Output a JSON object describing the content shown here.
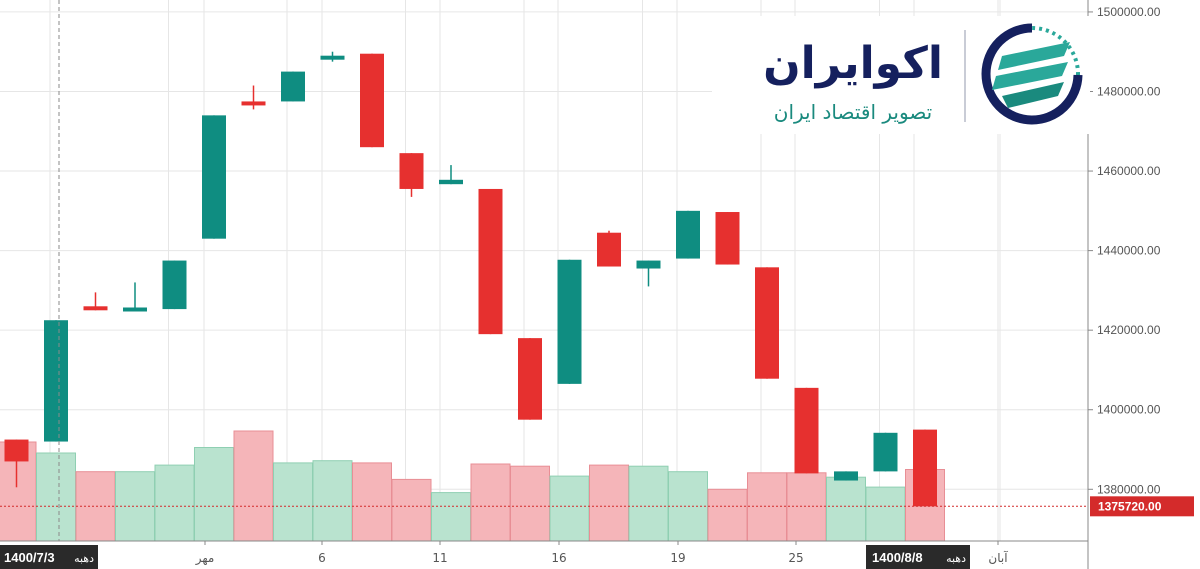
{
  "logo": {
    "title": "اکوایران",
    "subtitle": "تصویر اقتصاد ایران",
    "colors": {
      "navy": "#15205e",
      "teal": "#1a8a7e",
      "green": "#2aa89a"
    }
  },
  "colors": {
    "up": "#0f8d81",
    "down": "#e6302f",
    "volume_up": "#b9e3cf",
    "volume_down": "#f5b5b9",
    "grid": "#e6e6e6",
    "price_line": "#d42b2b",
    "label_bg": "#2a2a2a"
  },
  "chart_data": {
    "type": "candlestick",
    "title": "",
    "xlabel": "",
    "ylabel": "",
    "ylim": [
      1367000,
      1503000
    ],
    "yticks": [
      "1500000.00",
      "1480000.00",
      "1460000.00",
      "1440000.00",
      "1420000.00",
      "1400000.00",
      "1380000.00"
    ],
    "last_price": 1375720,
    "last_price_label": "1375720.00",
    "crosshair_date": "1400/7/3",
    "crosshair_day_label": "دهبه",
    "end_date": "1400/8/8",
    "end_day_label": "دهبه",
    "xticks": [
      {
        "index": 5,
        "label": "مهر"
      },
      {
        "index": 8,
        "label": "6"
      },
      {
        "index": 11,
        "label": "11"
      },
      {
        "index": 14,
        "label": "16"
      },
      {
        "index": 17,
        "label": "19"
      },
      {
        "index": 20,
        "label": "25"
      },
      {
        "index": 25,
        "label": "آبان"
      }
    ],
    "candles": [
      {
        "open": 1392500,
        "high": 1392500,
        "close": 1387000,
        "low": 1380500
      },
      {
        "open": 1392000,
        "high": 1422500,
        "close": 1422500,
        "low": 1392000
      },
      {
        "open": 1426000,
        "high": 1429500,
        "close": 1425000,
        "low": 1425000
      },
      {
        "open": 1425000,
        "high": 1432000,
        "close": 1425700,
        "low": 1425000
      },
      {
        "open": 1425300,
        "high": 1437500,
        "close": 1437500,
        "low": 1425300
      },
      {
        "open": 1443000,
        "high": 1474000,
        "close": 1474000,
        "low": 1443000
      },
      {
        "open": 1477500,
        "high": 1481500,
        "close": 1477000,
        "low": 1475500
      },
      {
        "open": 1477500,
        "high": 1485000,
        "close": 1485000,
        "low": 1477500
      },
      {
        "open": 1488000,
        "high": 1490000,
        "close": 1489000,
        "low": 1487500
      },
      {
        "open": 1489500,
        "high": 1489500,
        "close": 1466000,
        "low": 1466000
      },
      {
        "open": 1464500,
        "high": 1464500,
        "close": 1455500,
        "low": 1453500
      },
      {
        "open": 1456700,
        "high": 1461500,
        "close": 1457800,
        "low": 1456700
      },
      {
        "open": 1455500,
        "high": 1455500,
        "close": 1419000,
        "low": 1419000
      },
      {
        "open": 1418000,
        "high": 1418000,
        "close": 1397500,
        "low": 1397500
      },
      {
        "open": 1406500,
        "high": 1437700,
        "close": 1437700,
        "low": 1406500
      },
      {
        "open": 1444500,
        "high": 1445000,
        "close": 1436000,
        "low": 1436000
      },
      {
        "open": 1435500,
        "high": 1437500,
        "close": 1437500,
        "low": 1431000
      },
      {
        "open": 1438000,
        "high": 1450000,
        "close": 1450000,
        "low": 1438000
      },
      {
        "open": 1449700,
        "high": 1449700,
        "close": 1436500,
        "low": 1436500
      },
      {
        "open": 1435800,
        "high": 1435800,
        "close": 1407800,
        "low": 1407800
      },
      {
        "open": 1405500,
        "high": 1405500,
        "close": 1384000,
        "low": 1384000
      },
      {
        "open": 1382200,
        "high": 1384500,
        "close": 1384500,
        "low": 1382200
      },
      {
        "open": 1384500,
        "high": 1394200,
        "close": 1394200,
        "low": 1384500
      },
      {
        "open": 1395000,
        "high": 1395000,
        "close": 1375720,
        "low": 1375720
      }
    ],
    "volume": [
      {
        "value": 0.9,
        "dir": "down"
      },
      {
        "value": 0.8,
        "dir": "up"
      },
      {
        "value": 0.63,
        "dir": "down"
      },
      {
        "value": 0.63,
        "dir": "up"
      },
      {
        "value": 0.69,
        "dir": "up"
      },
      {
        "value": 0.85,
        "dir": "up"
      },
      {
        "value": 1.0,
        "dir": "down"
      },
      {
        "value": 0.71,
        "dir": "up"
      },
      {
        "value": 0.73,
        "dir": "up"
      },
      {
        "value": 0.71,
        "dir": "down"
      },
      {
        "value": 0.56,
        "dir": "down"
      },
      {
        "value": 0.44,
        "dir": "up"
      },
      {
        "value": 0.7,
        "dir": "down"
      },
      {
        "value": 0.68,
        "dir": "down"
      },
      {
        "value": 0.59,
        "dir": "up"
      },
      {
        "value": 0.69,
        "dir": "down"
      },
      {
        "value": 0.68,
        "dir": "up"
      },
      {
        "value": 0.63,
        "dir": "up"
      },
      {
        "value": 0.47,
        "dir": "down"
      },
      {
        "value": 0.62,
        "dir": "down"
      },
      {
        "value": 0.62,
        "dir": "down"
      },
      {
        "value": 0.58,
        "dir": "up"
      },
      {
        "value": 0.49,
        "dir": "up"
      },
      {
        "value": 0.65,
        "dir": "down"
      }
    ]
  }
}
